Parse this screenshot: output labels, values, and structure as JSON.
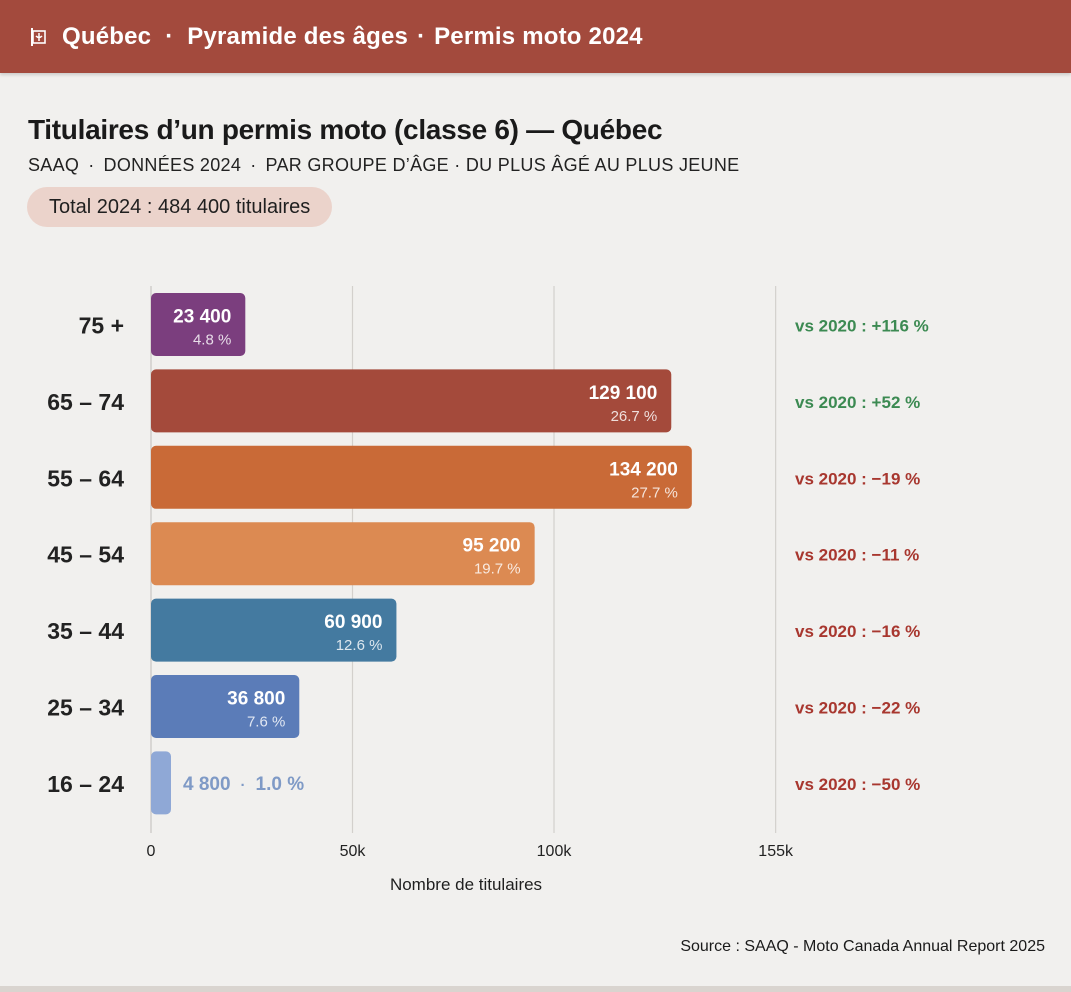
{
  "header": {
    "region": "Québec",
    "crumb_1": "Pyramide des âges",
    "crumb_2": "Permis moto 2024",
    "separator": "·"
  },
  "title": "Titulaires d’un permis moto (classe 6) — Québec",
  "subtitle": {
    "source": "SAAQ",
    "year": "DONNÉES 2024",
    "detail": "PAR GROUPE D’ÂGE · DU PLUS ÂGÉ AU PLUS JEUNE",
    "separator": "·"
  },
  "total_badge": "Total 2024 : 484 400 titulaires",
  "source_note": "Source : SAAQ - Moto Canada Annual Report 2025",
  "colors": {
    "header": "#a34a3d",
    "positive": "#3c8a52",
    "negative": "#a8372f"
  },
  "chart_data": {
    "type": "bar",
    "orientation": "horizontal",
    "categories": [
      "75 +",
      "65 – 74",
      "55 – 64",
      "45 – 54",
      "35 – 44",
      "25 – 34",
      "16 – 24"
    ],
    "values": [
      23400,
      129100,
      134200,
      95200,
      60900,
      36800,
      4800
    ],
    "value_labels": [
      "23 400",
      "129 100",
      "134 200",
      "95 200",
      "60 900",
      "36 800",
      "4 800"
    ],
    "percent_labels": [
      "4.8 %",
      "26.7 %",
      "27.7 %",
      "19.7 %",
      "12.6 %",
      "7.6 %",
      "1.0 %"
    ],
    "change_labels": [
      "vs 2020 : +116 %",
      "vs 2020 : +52 %",
      "vs 2020 : −19 %",
      "vs 2020 : −11 %",
      "vs 2020 : −16 %",
      "vs 2020 : −22 %",
      "vs 2020 : −50 %"
    ],
    "change_sign": [
      "positive",
      "positive",
      "negative",
      "negative",
      "negative",
      "negative",
      "negative"
    ],
    "bar_colors": [
      "#7b3e7e",
      "#a44a3b",
      "#c96a37",
      "#dc8a52",
      "#447aa0",
      "#5b7cb8",
      "#8fa8d6"
    ],
    "inline_separator": "·",
    "xticks": [
      0,
      50000,
      100000,
      155000
    ],
    "xtick_labels": [
      "0",
      "50k",
      "100k",
      "155k"
    ],
    "xlim": [
      0,
      155000
    ],
    "xlabel": "Nombre de titulaires",
    "grid": true
  }
}
